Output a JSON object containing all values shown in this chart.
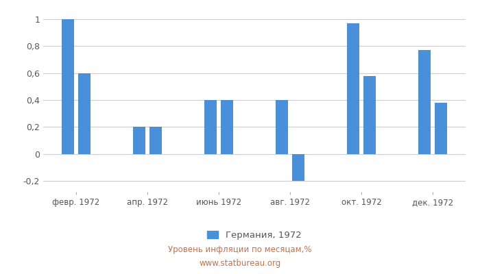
{
  "values": [
    1.0,
    0.6,
    0.2,
    0.2,
    0.4,
    0.4,
    0.4,
    -0.2,
    0.97,
    0.58,
    0.77,
    0.38
  ],
  "x_labels": [
    "февр. 1972",
    "апр. 1972",
    "июнь 1972",
    "авг. 1972",
    "окт. 1972",
    "дек. 1972"
  ],
  "bar_color": "#4a90d9",
  "legend_label": "Германия, 1972",
  "caption_line1": "Уровень инфляции по месяцам,%",
  "caption_line2": "www.statbureau.org",
  "ylim": [
    -0.28,
    1.08
  ],
  "yticks": [
    -0.2,
    0.0,
    0.2,
    0.4,
    0.6,
    0.8,
    1.0
  ],
  "background_color": "#ffffff",
  "grid_color": "#cccccc"
}
